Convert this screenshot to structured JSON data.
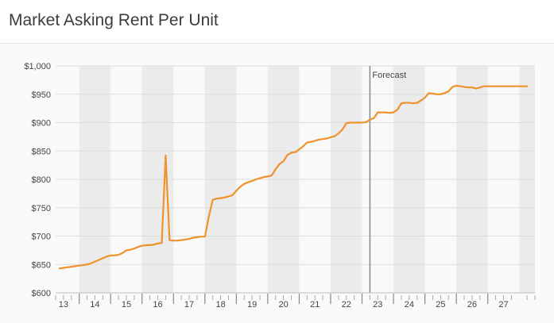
{
  "header": {
    "title": "Market Asking Rent Per Unit"
  },
  "chart_data": {
    "type": "line",
    "title": "Market Asking Rent Per Unit",
    "xlabel": "",
    "ylabel": "",
    "ylim": [
      600,
      1000
    ],
    "xlim": [
      2012.75,
      2028.0
    ],
    "yticks": [
      600,
      650,
      700,
      750,
      800,
      850,
      900,
      950,
      1000
    ],
    "ytick_labels": [
      "$600",
      "$650",
      "$700",
      "$750",
      "$800",
      "$850",
      "$900",
      "$950",
      "$1,000"
    ],
    "xticks": [
      2013,
      2014,
      2015,
      2016,
      2017,
      2018,
      2019,
      2020,
      2021,
      2022,
      2023,
      2024,
      2025,
      2026,
      2027
    ],
    "xtick_labels": [
      "13",
      "14",
      "15",
      "16",
      "17",
      "18",
      "19",
      "20",
      "21",
      "22",
      "23",
      "24",
      "25",
      "26",
      "27"
    ],
    "grid": true,
    "alternating_year_bands": true,
    "forecast": {
      "label": "Forecast",
      "x": 2022.75
    },
    "series": [
      {
        "name": "",
        "color": "#f0922b",
        "x": [
          2012.875,
          2013.0,
          2013.125,
          2013.25,
          2013.375,
          2013.5,
          2013.625,
          2013.75,
          2013.875,
          2014.0,
          2014.125,
          2014.25,
          2014.375,
          2014.5,
          2014.625,
          2014.75,
          2014.875,
          2015.0,
          2015.125,
          2015.25,
          2015.375,
          2015.5,
          2015.625,
          2015.75,
          2015.875,
          2016.0,
          2016.125,
          2016.25,
          2016.375,
          2016.5,
          2016.625,
          2016.75,
          2016.875,
          2017.0,
          2017.125,
          2017.25,
          2017.375,
          2017.5,
          2017.625,
          2017.75,
          2017.875,
          2018.0,
          2018.125,
          2018.25,
          2018.375,
          2018.5,
          2018.625,
          2018.75,
          2018.875,
          2019.0,
          2019.125,
          2019.25,
          2019.375,
          2019.5,
          2019.625,
          2019.75,
          2019.875,
          2020.0,
          2020.125,
          2020.25,
          2020.375,
          2020.5,
          2020.625,
          2020.75,
          2020.875,
          2021.0,
          2021.125,
          2021.25,
          2021.375,
          2021.5,
          2021.625,
          2021.75,
          2021.875,
          2022.0,
          2022.125,
          2022.25,
          2022.375,
          2022.5,
          2022.625,
          2022.75,
          2022.875,
          2023.0,
          2023.125,
          2023.25,
          2023.375,
          2023.5,
          2023.625,
          2023.75,
          2023.875,
          2024.0,
          2024.125,
          2024.25,
          2024.375,
          2024.5,
          2024.625,
          2024.75,
          2024.875,
          2025.0,
          2025.125,
          2025.25,
          2025.375,
          2025.5,
          2025.625,
          2025.75,
          2025.875,
          2026.0,
          2026.125,
          2026.25,
          2026.375,
          2026.5,
          2026.625,
          2026.75,
          2026.875,
          2027.0,
          2027.125,
          2027.25,
          2027.375,
          2027.5,
          2027.625,
          2027.75
        ],
        "values": [
          643,
          644,
          645,
          646,
          647,
          648,
          649,
          650,
          652,
          655,
          658,
          661,
          664,
          666,
          666,
          667,
          670,
          675,
          676,
          678,
          681,
          683,
          684,
          684,
          685,
          687,
          688,
          842,
          693,
          692,
          692,
          693,
          694,
          695,
          697,
          698,
          699,
          699,
          735,
          764,
          766,
          767,
          768,
          770,
          772,
          780,
          787,
          792,
          795,
          797,
          800,
          802,
          804,
          805,
          807,
          818,
          827,
          832,
          843,
          847,
          848,
          853,
          858,
          865,
          866,
          868,
          870,
          871,
          872,
          874,
          876,
          881,
          888,
          899,
          900,
          900,
          900,
          900,
          901,
          905,
          908,
          918,
          918,
          918,
          917,
          918,
          923,
          934,
          935,
          935,
          934,
          935,
          939,
          944,
          952,
          951,
          950,
          950,
          952,
          955,
          963,
          965,
          964,
          963,
          962,
          962,
          960,
          962,
          964,
          964,
          964,
          964,
          964,
          964,
          964,
          964,
          964,
          964,
          964,
          964
        ]
      }
    ]
  }
}
